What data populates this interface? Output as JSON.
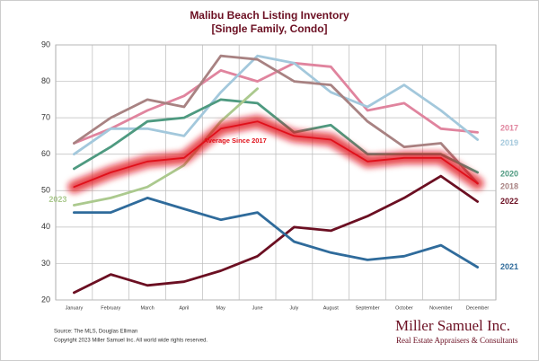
{
  "chart_data": {
    "type": "line",
    "title": "Malibu Beach Listing Inventory",
    "subtitle": "[Single Family, Condo]",
    "categories": [
      "January",
      "February",
      "March",
      "April",
      "May",
      "June",
      "July",
      "August",
      "September",
      "October",
      "November",
      "December"
    ],
    "series": [
      {
        "name": "2017",
        "color": "#e0849e",
        "values": [
          63,
          67,
          72,
          76,
          83,
          80,
          85,
          84,
          72,
          74,
          67,
          66
        ]
      },
      {
        "name": "2019",
        "color": "#a3c8dc",
        "values": [
          60,
          67,
          67,
          65,
          77,
          87,
          85,
          77,
          73,
          79,
          72,
          64
        ]
      },
      {
        "name": "2018",
        "color": "#a88282",
        "values": [
          63,
          70,
          75,
          73,
          87,
          86,
          80,
          79,
          69,
          62,
          63,
          52
        ]
      },
      {
        "name": "2020",
        "color": "#4e9a80",
        "values": [
          56,
          62,
          69,
          70,
          75,
          74,
          66,
          68,
          60,
          60,
          60,
          55
        ]
      },
      {
        "name": "2023",
        "color": "#abc98e",
        "values": [
          46,
          48,
          51,
          57,
          69,
          78,
          null,
          null,
          null,
          null,
          null,
          null
        ]
      },
      {
        "name": "Average  Since 2017",
        "color": "#e0101a",
        "glow": true,
        "values": [
          51,
          55,
          58,
          59,
          67,
          69,
          65,
          64,
          58,
          59,
          59,
          52
        ]
      },
      {
        "name": "2022",
        "color": "#6b0f22",
        "values": [
          22,
          27,
          24,
          25,
          28,
          32,
          40,
          39,
          43,
          48,
          54,
          47
        ]
      },
      {
        "name": "2021",
        "color": "#2f6b9b",
        "values": [
          44,
          44,
          48,
          45,
          42,
          44,
          36,
          33,
          31,
          32,
          35,
          29
        ]
      }
    ],
    "ylim": [
      20,
      90
    ],
    "yticks": [
      20,
      30,
      40,
      50,
      60,
      70,
      80,
      90
    ],
    "grid": true,
    "source": "Source: The MLS, Douglas Elliman",
    "copyright": "Copyright 2023 Miller Samuel Inc.  All world wide rights reserved.",
    "brand": "Miller Samuel Inc.",
    "brand_tagline": "Real Estate Appraisers & Consultants"
  }
}
